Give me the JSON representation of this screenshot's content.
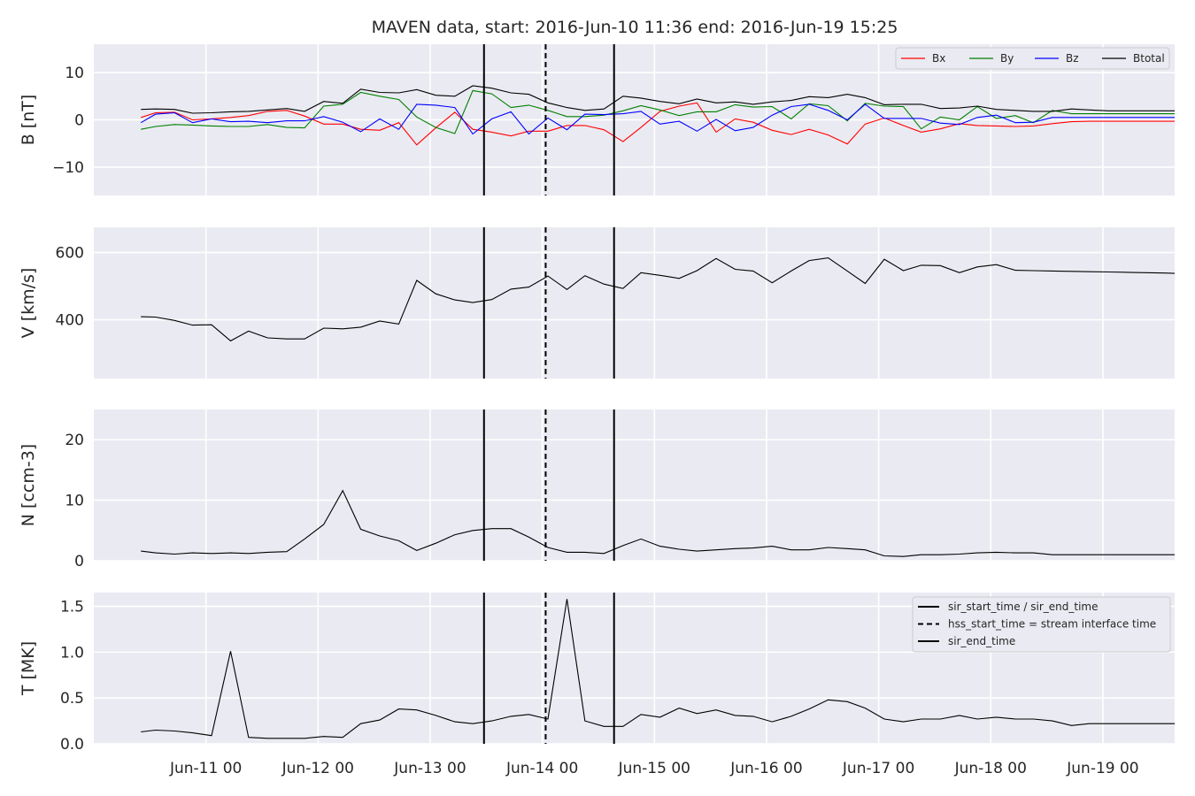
{
  "title": "MAVEN data, start: 2016-Jun-10 11:36  end: 2016-Jun-19 15:25",
  "colors": {
    "background": "#ffffff",
    "panel": "#eaeaf2",
    "grid": "#ffffff",
    "text": "#262626",
    "Bx": "#ff0000",
    "By": "#008000",
    "Bz": "#0000ff",
    "Btotal": "#000000"
  },
  "chart_data": [
    {
      "type": "line",
      "ylabel": "B [nT]",
      "ylim": [
        -16,
        16
      ],
      "yticks": [
        -10,
        0,
        10
      ],
      "grid": true,
      "legend_position": "top-right",
      "x_unit": "days since 2016-Jun-10 00:00",
      "x": [
        10.42,
        10.55,
        10.72,
        10.88,
        11.05,
        11.22,
        11.38,
        11.55,
        11.72,
        11.88,
        12.05,
        12.22,
        12.38,
        12.55,
        12.72,
        12.88,
        13.05,
        13.22,
        13.38,
        13.55,
        13.72,
        13.88,
        14.05,
        14.22,
        14.38,
        14.55,
        14.72,
        14.88,
        15.05,
        15.22,
        15.38,
        15.55,
        15.72,
        15.88,
        16.05,
        16.22,
        16.38,
        16.55,
        16.72,
        16.88,
        17.05,
        17.22,
        17.38,
        17.55,
        17.72,
        17.88,
        18.05,
        18.22,
        18.38,
        18.55,
        18.72,
        18.88,
        19.05,
        19.22,
        19.38,
        19.55,
        19.64
      ],
      "series": [
        {
          "name": "Bx",
          "color": "#ff0000",
          "values": [
            0.5,
            1.5,
            1.6,
            0.0,
            0.2,
            0.5,
            0.9,
            1.8,
            2.0,
            0.8,
            -0.9,
            -0.9,
            -2.0,
            -2.2,
            -0.6,
            -5.3,
            -1.7,
            1.6,
            -2.0,
            -2.6,
            -3.4,
            -2.4,
            -2.4,
            -1.2,
            -1.2,
            -2.1,
            -4.6,
            -1.6,
            1.8,
            2.9,
            3.6,
            -2.6,
            0.2,
            -0.5,
            -2.2,
            -3.1,
            -2.0,
            -3.2,
            -5.1,
            -0.9,
            0.4,
            -1.2,
            -2.6,
            -1.9,
            -0.8,
            -1.2,
            -1.3,
            -1.4,
            -1.3,
            -0.8,
            -0.4,
            -0.3,
            -0.3,
            -0.3,
            -0.3,
            -0.3,
            -0.3
          ]
        },
        {
          "name": "By",
          "color": "#008000",
          "values": [
            -2.0,
            -1.4,
            -1.0,
            -1.1,
            -1.3,
            -1.4,
            -1.4,
            -1.0,
            -1.6,
            -1.7,
            2.9,
            3.3,
            5.8,
            5.0,
            4.3,
            0.6,
            -1.6,
            -2.9,
            6.2,
            5.5,
            2.6,
            3.1,
            2.0,
            0.7,
            0.7,
            1.0,
            1.9,
            3.0,
            2.1,
            0.9,
            1.7,
            1.7,
            3.2,
            2.7,
            2.8,
            0.2,
            3.4,
            3.0,
            -0.2,
            3.5,
            2.9,
            2.8,
            -1.9,
            0.6,
            0.0,
            2.8,
            0.3,
            0.9,
            -0.6,
            2.0,
            1.3,
            1.3,
            1.3,
            1.3,
            1.3,
            1.3,
            1.3
          ]
        },
        {
          "name": "Bz",
          "color": "#0000ff",
          "values": [
            -0.6,
            1.2,
            1.5,
            -0.6,
            0.2,
            -0.4,
            -0.3,
            -0.6,
            -0.2,
            -0.2,
            0.7,
            -0.5,
            -2.5,
            0.2,
            -2.0,
            3.3,
            3.1,
            2.6,
            -3.0,
            0.2,
            1.7,
            -3.0,
            0.4,
            -2.1,
            1.2,
            1.1,
            1.3,
            1.8,
            -0.9,
            -0.3,
            -2.4,
            0.1,
            -2.3,
            -1.6,
            1.0,
            2.8,
            3.3,
            2.0,
            0.0,
            3.3,
            0.3,
            0.3,
            0.3,
            -0.7,
            -1.0,
            0.5,
            1.0,
            -0.6,
            -0.5,
            0.5,
            0.5,
            0.5,
            0.5,
            0.5,
            0.5,
            0.5,
            0.5
          ]
        },
        {
          "name": "Btotal",
          "color": "#000000",
          "values": [
            2.2,
            2.3,
            2.2,
            1.4,
            1.5,
            1.7,
            1.8,
            2.1,
            2.4,
            1.8,
            3.9,
            3.5,
            6.5,
            5.8,
            5.7,
            6.4,
            5.2,
            5.0,
            7.2,
            6.7,
            5.7,
            5.4,
            3.6,
            2.6,
            2.0,
            2.3,
            5.0,
            4.6,
            3.9,
            3.4,
            4.4,
            3.6,
            3.8,
            3.3,
            3.8,
            4.1,
            4.9,
            4.7,
            5.4,
            4.7,
            3.2,
            3.3,
            3.3,
            2.4,
            2.5,
            2.9,
            2.2,
            2.0,
            1.8,
            1.8,
            2.3,
            2.1,
            1.9,
            1.9,
            1.9,
            1.9,
            1.9
          ]
        }
      ]
    },
    {
      "type": "line",
      "ylabel": "V [km/s]",
      "ylim": [
        225,
        675
      ],
      "yticks": [
        400,
        600
      ],
      "grid": true,
      "x": [
        10.42,
        10.55,
        10.72,
        10.88,
        11.05,
        11.22,
        11.38,
        11.55,
        11.72,
        11.88,
        12.05,
        12.22,
        12.38,
        12.55,
        12.72,
        12.88,
        13.05,
        13.22,
        13.38,
        13.55,
        13.72,
        13.88,
        14.05,
        14.22,
        14.38,
        14.55,
        14.72,
        14.88,
        15.05,
        15.22,
        15.38,
        15.55,
        15.72,
        15.88,
        16.05,
        16.22,
        16.38,
        16.55,
        16.72,
        16.88,
        17.05,
        17.22,
        17.38,
        17.55,
        17.72,
        17.88,
        18.05,
        18.22,
        18.38,
        18.55,
        18.72,
        18.88,
        19.05,
        19.22,
        19.38,
        19.55,
        19.64
      ],
      "series": [
        {
          "name": "V",
          "color": "#000000",
          "values": [
            409,
            408,
            398,
            384,
            385,
            337,
            366,
            346,
            343,
            343,
            375,
            373,
            378,
            396,
            387,
            517,
            477,
            459,
            451,
            460,
            491,
            497,
            530,
            490,
            531,
            506,
            493,
            540,
            532,
            523,
            546,
            582,
            550,
            545,
            510,
            545,
            576,
            584,
            545,
            508,
            580,
            546,
            562,
            561,
            540,
            557,
            564,
            547,
            546,
            545,
            544,
            543,
            542,
            541,
            540,
            539,
            538
          ]
        }
      ]
    },
    {
      "type": "line",
      "ylabel": "N [ccm-3]",
      "ylim": [
        0,
        25
      ],
      "yticks": [
        0,
        10,
        20
      ],
      "grid": true,
      "x": [
        10.42,
        10.55,
        10.72,
        10.88,
        11.05,
        11.22,
        11.38,
        11.55,
        11.72,
        11.88,
        12.05,
        12.22,
        12.38,
        12.55,
        12.72,
        12.88,
        13.05,
        13.22,
        13.38,
        13.55,
        13.72,
        13.88,
        14.05,
        14.22,
        14.38,
        14.55,
        14.72,
        14.88,
        15.05,
        15.22,
        15.38,
        15.55,
        15.72,
        15.88,
        16.05,
        16.22,
        16.38,
        16.55,
        16.72,
        16.88,
        17.05,
        17.22,
        17.38,
        17.55,
        17.72,
        17.88,
        18.05,
        18.22,
        18.38,
        18.55,
        18.72,
        18.88,
        19.05,
        19.22,
        19.38,
        19.55,
        19.64
      ],
      "series": [
        {
          "name": "N",
          "color": "#000000",
          "values": [
            1.6,
            1.3,
            1.1,
            1.3,
            1.2,
            1.3,
            1.2,
            1.4,
            1.5,
            3.6,
            6.0,
            11.6,
            5.2,
            4.1,
            3.3,
            1.7,
            2.9,
            4.3,
            5.0,
            5.3,
            5.3,
            3.9,
            2.2,
            1.4,
            1.4,
            1.2,
            2.5,
            3.6,
            2.4,
            1.9,
            1.6,
            1.8,
            2.0,
            2.1,
            2.4,
            1.8,
            1.8,
            2.2,
            2.0,
            1.8,
            0.8,
            0.7,
            1.0,
            1.0,
            1.1,
            1.3,
            1.4,
            1.3,
            1.3,
            1.0,
            1.0,
            1.0,
            1.0,
            1.0,
            1.0,
            1.0,
            1.0
          ]
        }
      ]
    },
    {
      "type": "line",
      "ylabel": "T [MK]",
      "ylim": [
        0,
        1.65
      ],
      "yticks": [
        0.0,
        0.5,
        1.0,
        1.5
      ],
      "grid": true,
      "legend_position": "top-right",
      "x": [
        10.42,
        10.55,
        10.72,
        10.88,
        11.05,
        11.22,
        11.38,
        11.55,
        11.72,
        11.88,
        12.05,
        12.22,
        12.38,
        12.55,
        12.72,
        12.88,
        13.05,
        13.22,
        13.38,
        13.55,
        13.72,
        13.88,
        14.05,
        14.22,
        14.38,
        14.55,
        14.72,
        14.88,
        15.05,
        15.22,
        15.38,
        15.55,
        15.72,
        15.88,
        16.05,
        16.22,
        16.38,
        16.55,
        16.72,
        16.88,
        17.05,
        17.22,
        17.38,
        17.55,
        17.72,
        17.88,
        18.05,
        18.22,
        18.38,
        18.55,
        18.72,
        18.88,
        19.05,
        19.22,
        19.38,
        19.55,
        19.64
      ],
      "series": [
        {
          "name": "T",
          "color": "#000000",
          "values": [
            0.13,
            0.15,
            0.14,
            0.12,
            0.09,
            1.01,
            0.07,
            0.06,
            0.06,
            0.06,
            0.08,
            0.07,
            0.22,
            0.26,
            0.38,
            0.37,
            0.31,
            0.24,
            0.22,
            0.25,
            0.3,
            0.32,
            0.27,
            1.58,
            0.25,
            0.19,
            0.19,
            0.32,
            0.29,
            0.39,
            0.33,
            0.37,
            0.31,
            0.3,
            0.24,
            0.3,
            0.38,
            0.48,
            0.46,
            0.39,
            0.27,
            0.24,
            0.27,
            0.27,
            0.31,
            0.27,
            0.29,
            0.27,
            0.27,
            0.25,
            0.2,
            0.22,
            0.22,
            0.22,
            0.22,
            0.22,
            0.22
          ]
        }
      ]
    }
  ],
  "x_axis": {
    "xlim": [
      10.0,
      19.64
    ],
    "tick_positions": [
      11,
      12,
      13,
      14,
      15,
      16,
      17,
      18,
      19
    ],
    "tick_labels": [
      "Jun-11 00",
      "Jun-12 00",
      "Jun-13 00",
      "Jun-14 00",
      "Jun-15 00",
      "Jun-16 00",
      "Jun-17 00",
      "Jun-18 00",
      "Jun-19 00"
    ]
  },
  "events": {
    "sir_start_time": 13.48,
    "hss_start_time": 14.03,
    "sir_end_time": 14.64
  },
  "legend_b": [
    "Bx",
    "By",
    "Bz",
    "Btotal"
  ],
  "legend_t": [
    "sir_start_time / sir_end_time",
    "hss_start_time = stream interface time",
    "sir_end_time"
  ]
}
